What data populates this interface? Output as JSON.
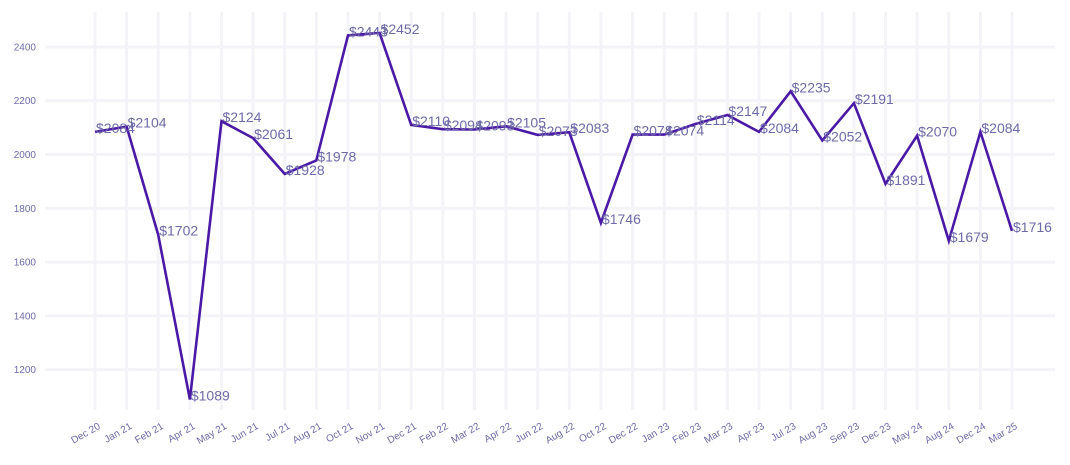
{
  "chart_data": {
    "type": "line",
    "title": "",
    "xlabel": "",
    "ylabel": "",
    "ylim": [
      1050,
      2530
    ],
    "yticks": [
      1200,
      1400,
      1600,
      1800,
      2000,
      2200,
      2400
    ],
    "grid": true,
    "legend": "none",
    "colors": {
      "line": "#4a19a6",
      "labels": "#6e6aa8",
      "grid": "#f4f4f8"
    },
    "categories": [
      "Dec 20",
      "Jan 21",
      "Feb 21",
      "Apr 21",
      "May 21",
      "Jun 21",
      "Jul 21",
      "Aug 21",
      "Oct 21",
      "Nov 21",
      "Dec 21",
      "Feb 22",
      "Mar 22",
      "Apr 22",
      "Jun 22",
      "Aug 22",
      "Oct 22",
      "Dec 22",
      "Jan 23",
      "Feb 23",
      "Mar 23",
      "Apr 23",
      "Jul 23",
      "Aug 23",
      "Sep 23",
      "Dec 23",
      "May 24",
      "Aug 24",
      "Dec 24",
      "Mar 25"
    ],
    "series": [
      {
        "name": "",
        "values": [
          2084,
          2104,
          1702,
          1089,
          2124,
          2061,
          1928,
          1978,
          2443,
          2452,
          2110,
          2094,
          2093,
          2105,
          2073,
          2083,
          1746,
          2074,
          2074,
          2114,
          2147,
          2084,
          2235,
          2052,
          2191,
          1891,
          2070,
          1679,
          2084,
          1716
        ],
        "labels": [
          "$2084",
          "$2104",
          "$1702",
          "$1089",
          "$2124",
          "$2061",
          "$1928",
          "$1978",
          "$2443",
          "$2452",
          "$2110",
          "$2094",
          "$2093",
          "$2105",
          "$2073",
          "$2083",
          "$1746",
          "$2074",
          "$2074",
          "$2114",
          "$2147",
          "$2084",
          "$2235",
          "$2052",
          "$2191",
          "$1891",
          "$2070",
          "$1679",
          "$2084",
          "$1716"
        ]
      }
    ]
  }
}
